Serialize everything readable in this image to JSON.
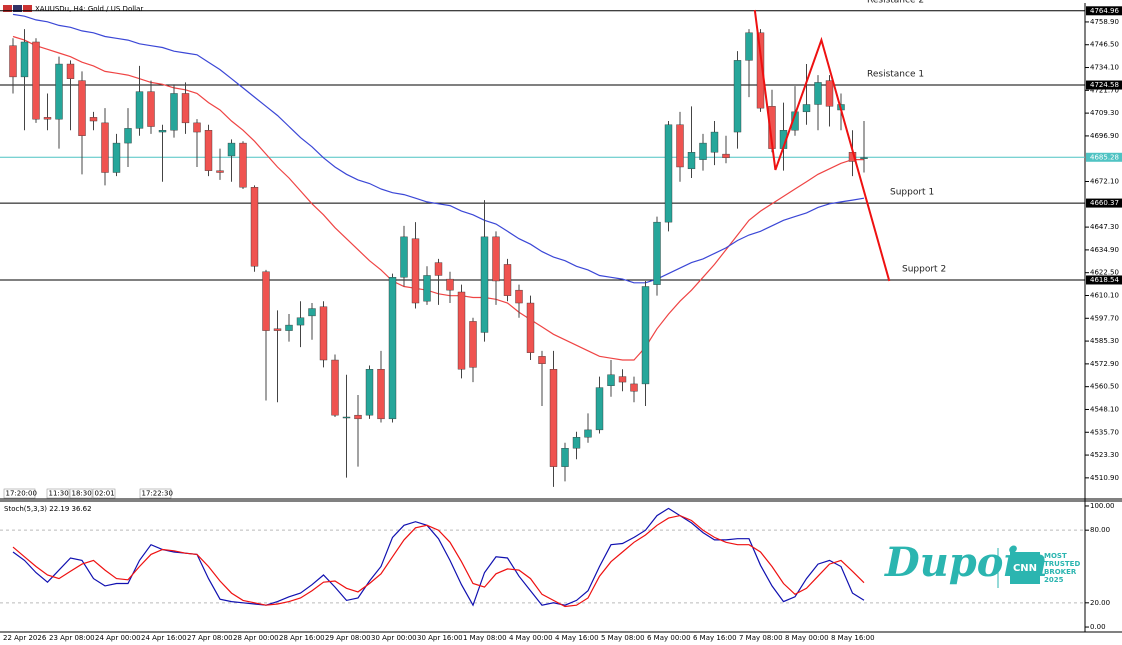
{
  "chart_data": [
    {
      "type": "candlestick",
      "title": "XAUUSDu, H4: Gold / US Dollar",
      "categories": [
        "22 Apr 2026",
        null,
        null,
        null,
        "23 Apr 08:00",
        null,
        null,
        null,
        "24 Apr 00:00",
        null,
        null,
        null,
        "24 Apr 16:00",
        null,
        null,
        null,
        "27 Apr 08:00",
        null,
        null,
        null,
        "28 Apr 00:00",
        null,
        null,
        null,
        "28 Apr 16:00",
        null,
        null,
        null,
        "29 Apr 08:00",
        null,
        null,
        null,
        "30 Apr 00:00",
        null,
        null,
        null,
        "30 Apr 16:00",
        null,
        null,
        null,
        "1 May 08:00",
        null,
        null,
        null,
        "4 May 00:00",
        null,
        null,
        null,
        "4 May 16:00",
        null,
        null,
        null,
        "5 May 08:00",
        null,
        null,
        null,
        "6 May 00:00",
        null,
        null,
        null,
        "6 May 16:00",
        null,
        null,
        null,
        "7 May 08:00",
        null,
        null,
        null,
        "8 May 00:00",
        null,
        null,
        null,
        "8 May 16:00",
        null,
        null
      ],
      "open": [
        4746,
        4729,
        4748,
        4707,
        4706,
        4736,
        4727,
        4707,
        4704,
        4677,
        4693,
        4701,
        4721,
        4699,
        4700,
        4720,
        4704,
        4700,
        4678,
        4686,
        4693,
        4669,
        4623,
        4592,
        4591,
        4594,
        4599,
        4604,
        4575,
        4544,
        4545,
        4545,
        4570,
        4543,
        4620,
        4641,
        4607,
        4628,
        4619,
        4612,
        4596,
        4590,
        4642,
        4627,
        4613,
        4606,
        4577,
        4570,
        4517,
        4527,
        4533,
        4537,
        4561,
        4566,
        4562,
        4562,
        4616,
        4650,
        4703,
        4679,
        4684,
        4688,
        4687,
        4699,
        4738,
        4753,
        4713,
        4690,
        4700,
        4710,
        4714,
        4727,
        4711,
        4688,
        4685
      ],
      "high": [
        4750,
        4755,
        4750,
        4720,
        4740,
        4738,
        4732,
        4710,
        4712,
        4698,
        4712,
        4735,
        4727,
        4703,
        4725,
        4726,
        4706,
        4703,
        4690,
        4695,
        4694,
        4670,
        4624,
        4602,
        4600,
        4607,
        4606,
        4607,
        4578,
        4567,
        4556,
        4572,
        4580,
        4622,
        4648,
        4650,
        4626,
        4630,
        4623,
        4616,
        4598,
        4662,
        4645,
        4630,
        4616,
        4610,
        4580,
        4580,
        4530,
        4536,
        4546,
        4566,
        4575,
        4570,
        4566,
        4618,
        4653,
        4705,
        4710,
        4713,
        4698,
        4705,
        4697,
        4743,
        4755,
        4755,
        4722,
        4715,
        4724,
        4736,
        4730,
        4730,
        4720,
        4700,
        4705
      ],
      "low": [
        4720,
        4700,
        4704,
        4700,
        4690,
        4700,
        4676,
        4700,
        4670,
        4675,
        4680,
        4697,
        4698,
        4672,
        4696,
        4698,
        4680,
        4675,
        4673,
        4672,
        4668,
        4623,
        4553,
        4552,
        4585,
        4582,
        4586,
        4571,
        4544,
        4511,
        4517,
        4543,
        4541,
        4541,
        4615,
        4603,
        4605,
        4605,
        4606,
        4565,
        4563,
        4585,
        4605,
        4607,
        4598,
        4575,
        4550,
        4506,
        4509,
        4521,
        4530,
        4535,
        4555,
        4558,
        4552,
        4550,
        4610,
        4645,
        4672,
        4674,
        4678,
        4681,
        4682,
        4690,
        4718,
        4710,
        4688,
        4678,
        4697,
        4703,
        4700,
        4702,
        4700,
        4675,
        4677
      ],
      "close": [
        4729,
        4748,
        4706,
        4706,
        4736,
        4728,
        4697,
        4705,
        4677,
        4693,
        4701,
        4721,
        4702,
        4700,
        4720,
        4704,
        4699,
        4678,
        4677,
        4693,
        4669,
        4626,
        4591,
        4591,
        4594,
        4598,
        4603,
        4575,
        4545,
        4544,
        4543,
        4570,
        4543,
        4620,
        4642,
        4606,
        4621,
        4621,
        4613,
        4570,
        4571,
        4642,
        4618,
        4610,
        4606,
        4579,
        4573,
        4517,
        4527,
        4533,
        4537,
        4560,
        4567,
        4563,
        4558,
        4615,
        4650,
        4703,
        4680,
        4688,
        4693,
        4699,
        4685,
        4738,
        4753,
        4712,
        4690,
        4700,
        4710,
        4714,
        4726,
        4713,
        4714,
        4683,
        4685
      ],
      "up_color": "#26a69a",
      "down_color": "#ef5350",
      "series": [
        {
          "color": "#ef4444",
          "values": [
            4751,
            4749,
            4746,
            4744,
            4742,
            4740,
            4737,
            4735,
            4732,
            4731,
            4730,
            4728,
            4726,
            4725,
            4723,
            4722,
            4720,
            4715,
            4711,
            4705,
            4700,
            4694,
            4687,
            4680,
            4674,
            4667,
            4660,
            4654,
            4647,
            4641,
            4635,
            4629,
            4624,
            4618,
            4615,
            4614,
            4613,
            4611,
            4610,
            4610,
            4609,
            4609,
            4608,
            4606,
            4601,
            4597,
            4593,
            4589,
            4586,
            4583,
            4580,
            4577,
            4576,
            4575,
            4575,
            4582,
            4592,
            4600,
            4607,
            4613,
            4620,
            4627,
            4635,
            4643,
            4651,
            4656,
            4660,
            4664,
            4668,
            4672,
            4676,
            4679,
            4682,
            4684,
            4684
          ]
        },
        {
          "color": "#3b47d6",
          "values": [
            4763,
            4762,
            4760,
            4759,
            4757,
            4756,
            4754,
            4753,
            4751,
            4750,
            4749,
            4747,
            4746,
            4745,
            4743,
            4742,
            4741,
            4737,
            4733,
            4728,
            4723,
            4718,
            4713,
            4708,
            4702,
            4696,
            4691,
            4685,
            4680,
            4676,
            4673,
            4671,
            4668,
            4666,
            4665,
            4663,
            4661,
            4660,
            4659,
            4656,
            4654,
            4651,
            4649,
            4645,
            4641,
            4638,
            4634,
            4631,
            4629,
            4626,
            4624,
            4621,
            4620,
            4619,
            4617,
            4617,
            4619,
            4622,
            4625,
            4628,
            4630,
            4633,
            4636,
            4640,
            4643,
            4645,
            4648,
            4651,
            4653,
            4655,
            4658,
            4660,
            4661,
            4662,
            4663
          ]
        }
      ],
      "levels": [
        {
          "value": 4764.96,
          "label": "Resistance 2",
          "color": "#000000"
        },
        {
          "value": 4724.58,
          "label": "Resistance 1",
          "color": "#000000"
        },
        {
          "value": 4685.28,
          "color": "#4fc3c3"
        },
        {
          "value": 4660.37,
          "label": "Support 1",
          "color": "#000000"
        },
        {
          "value": 4618.54,
          "label": "Support 2",
          "color": "#000000"
        }
      ],
      "pattern": {
        "color": "#ee1111",
        "x": [
          64.5,
          66.3,
          70.3,
          76.2
        ],
        "y": [
          4765.4,
          4678.4,
          4749.1,
          4618.0
        ]
      },
      "timers": [
        "17:20:00",
        "11:30",
        "18:30",
        "02:01",
        "17:22:30"
      ],
      "ylim": [
        4499.4,
        4769.2
      ],
      "yticks": [
        {
          "value": 4758.9,
          "label": "4758.90"
        },
        {
          "value": 4746.5,
          "label": "4746.50"
        },
        {
          "value": 4734.1,
          "label": "4734.10"
        },
        {
          "value": 4721.7,
          "label": "4721.70"
        },
        {
          "value": 4709.3,
          "label": "4709.30"
        },
        {
          "value": 4696.9,
          "label": "4696.90"
        },
        {
          "value": 4672.1,
          "label": "4672.10"
        },
        {
          "value": 4647.3,
          "label": "4647.30"
        },
        {
          "value": 4634.9,
          "label": "4634.90"
        },
        {
          "value": 4622.5,
          "label": "4622.50"
        },
        {
          "value": 4610.1,
          "label": "4610.10"
        },
        {
          "value": 4597.7,
          "label": "4597.70"
        },
        {
          "value": 4585.3,
          "label": "4585.30"
        },
        {
          "value": 4572.9,
          "label": "4572.90"
        },
        {
          "value": 4560.5,
          "label": "4560.50"
        },
        {
          "value": 4548.1,
          "label": "4548.10"
        },
        {
          "value": 4535.7,
          "label": "4535.70"
        },
        {
          "value": 4523.3,
          "label": "4523.30"
        },
        {
          "value": 4510.9,
          "label": "4510.90"
        }
      ]
    },
    {
      "type": "line",
      "title": "Stoch(5,3,3) 22.19 36.62",
      "series": [
        {
          "color": "#1010b0",
          "values": [
            62,
            55,
            45,
            37,
            47,
            57,
            55,
            40,
            34,
            36,
            36,
            55,
            68,
            64,
            62,
            61,
            60,
            40,
            23,
            21,
            20,
            19,
            18,
            21,
            25,
            28,
            35,
            43,
            33,
            22,
            24,
            38,
            50,
            74,
            84,
            87,
            84,
            73,
            55,
            35,
            18,
            45,
            58,
            57,
            42,
            30,
            18,
            20,
            18,
            22,
            30,
            50,
            68,
            69,
            74,
            80,
            92,
            98,
            92,
            86,
            78,
            72,
            72,
            73,
            73,
            51,
            34,
            21,
            25,
            40,
            52,
            55,
            50,
            28,
            22.19
          ]
        },
        {
          "color": "#ee1111",
          "values": [
            66,
            58,
            50,
            43,
            40,
            46,
            52,
            55,
            47,
            40,
            39,
            50,
            60,
            64,
            63,
            61,
            60,
            50,
            38,
            28,
            22,
            20,
            18,
            19,
            21,
            24,
            30,
            37,
            38,
            32,
            29,
            36,
            44,
            58,
            72,
            82,
            84,
            80,
            70,
            54,
            36,
            33,
            44,
            48,
            47,
            40,
            27,
            22,
            17,
            18,
            24,
            42,
            54,
            62,
            70,
            76,
            84,
            90,
            92,
            88,
            80,
            74,
            70,
            68,
            68,
            62,
            50,
            36,
            27,
            32,
            42,
            52,
            55,
            46,
            36.62
          ]
        }
      ],
      "levels": [
        80,
        20
      ],
      "ylim": [
        -4.1,
        104.1
      ],
      "yticks": [
        {
          "value": 100,
          "label": "100.00"
        },
        {
          "value": 80,
          "label": "80.00"
        },
        {
          "value": 20,
          "label": "20.00"
        },
        {
          "value": 0,
          "label": "0.00"
        }
      ],
      "watermark": {
        "brand": "Dupoin",
        "badge": "CNN",
        "tagline": [
          "MOST",
          "TRUSTED",
          "BROKER",
          "2025"
        ]
      }
    }
  ]
}
